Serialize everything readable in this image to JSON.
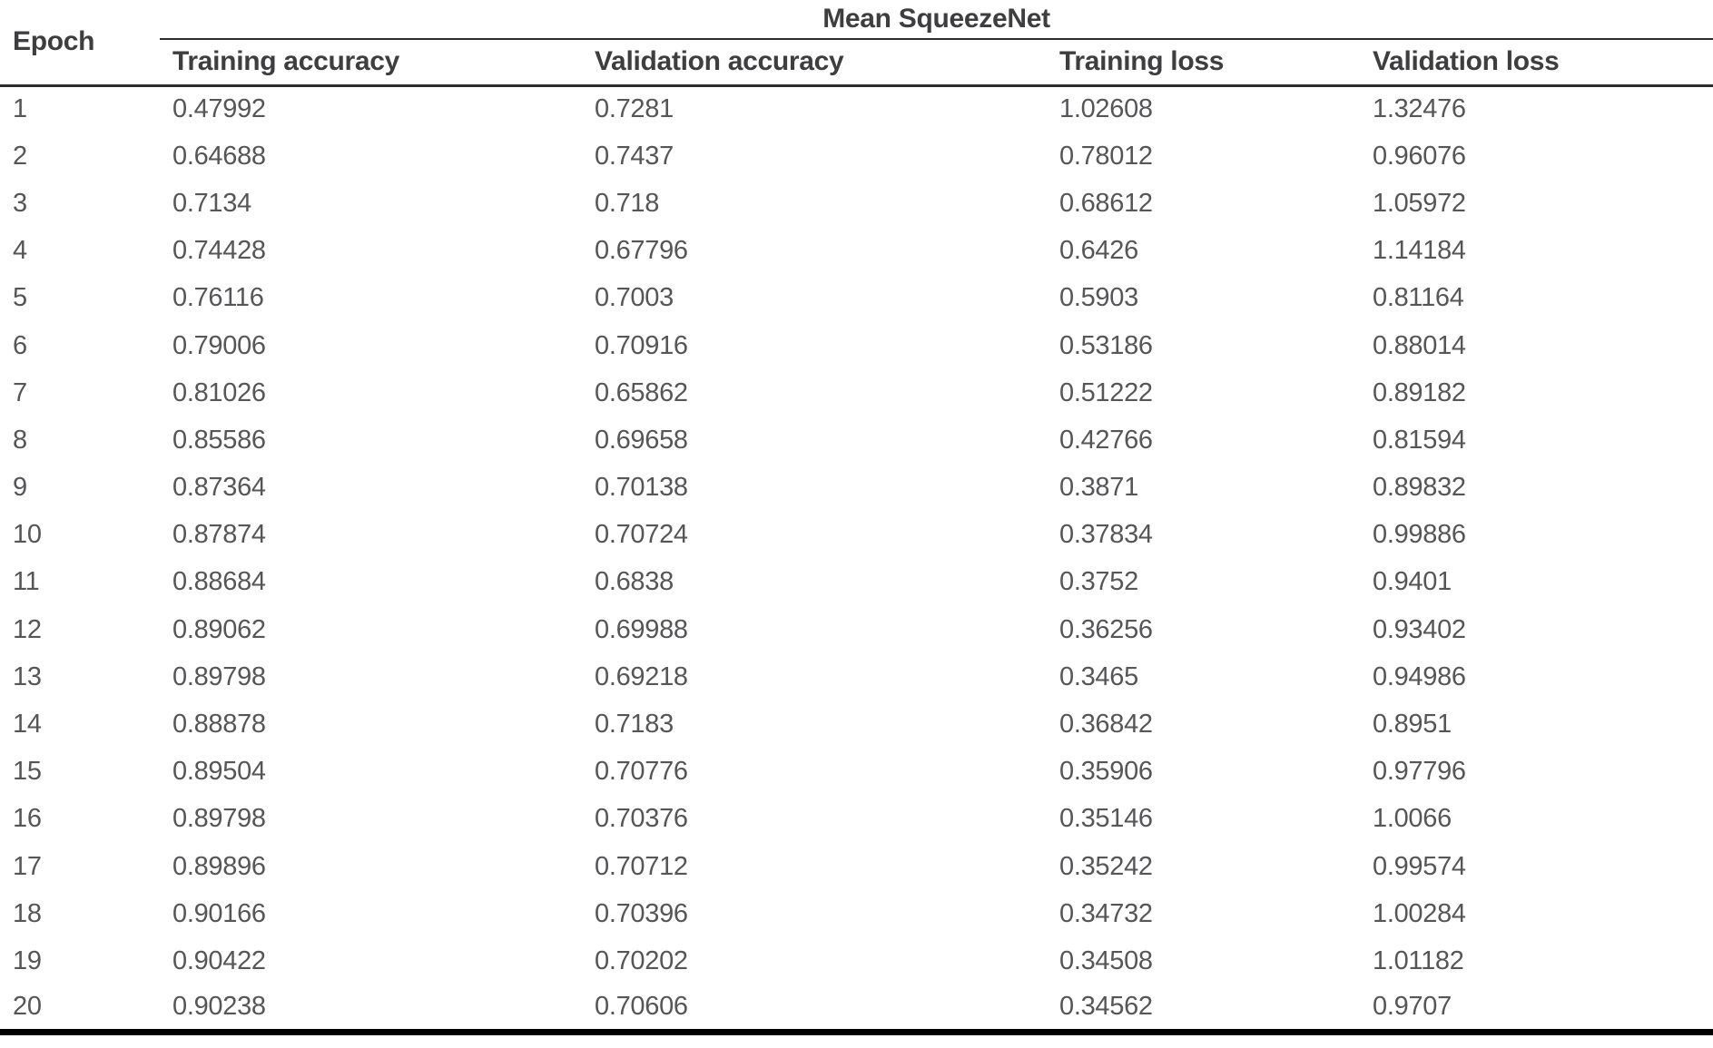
{
  "colors": {
    "header_text": "#3e3e40",
    "body_text": "#565659",
    "rule_color": "#2d2d2f",
    "bottom_rule": "#000000",
    "background": "#ffffff"
  },
  "table": {
    "epoch_header": "Epoch",
    "group_header": "Mean SqueezeNet",
    "columns": [
      "Training accuracy",
      "Validation accuracy",
      "Training loss",
      "Validation loss"
    ],
    "column_keys": [
      "training-accuracy",
      "validation-accuracy",
      "training-loss",
      "validation-loss"
    ],
    "rows": [
      [
        "1",
        "0.47992",
        "0.7281",
        "1.02608",
        "1.32476"
      ],
      [
        "2",
        "0.64688",
        "0.7437",
        "0.78012",
        "0.96076"
      ],
      [
        "3",
        "0.7134",
        "0.718",
        "0.68612",
        "1.05972"
      ],
      [
        "4",
        "0.74428",
        "0.67796",
        "0.6426",
        "1.14184"
      ],
      [
        "5",
        "0.76116",
        "0.7003",
        "0.5903",
        "0.81164"
      ],
      [
        "6",
        "0.79006",
        "0.70916",
        "0.53186",
        "0.88014"
      ],
      [
        "7",
        "0.81026",
        "0.65862",
        "0.51222",
        "0.89182"
      ],
      [
        "8",
        "0.85586",
        "0.69658",
        "0.42766",
        "0.81594"
      ],
      [
        "9",
        "0.87364",
        "0.70138",
        "0.3871",
        "0.89832"
      ],
      [
        "10",
        "0.87874",
        "0.70724",
        "0.37834",
        "0.99886"
      ],
      [
        "11",
        "0.88684",
        "0.6838",
        "0.3752",
        "0.9401"
      ],
      [
        "12",
        "0.89062",
        "0.69988",
        "0.36256",
        "0.93402"
      ],
      [
        "13",
        "0.89798",
        "0.69218",
        "0.3465",
        "0.94986"
      ],
      [
        "14",
        "0.88878",
        "0.7183",
        "0.36842",
        "0.8951"
      ],
      [
        "15",
        "0.89504",
        "0.70776",
        "0.35906",
        "0.97796"
      ],
      [
        "16",
        "0.89798",
        "0.70376",
        "0.35146",
        "1.0066"
      ],
      [
        "17",
        "0.89896",
        "0.70712",
        "0.35242",
        "0.99574"
      ],
      [
        "18",
        "0.90166",
        "0.70396",
        "0.34732",
        "1.00284"
      ],
      [
        "19",
        "0.90422",
        "0.70202",
        "0.34508",
        "1.01182"
      ],
      [
        "20",
        "0.90238",
        "0.70606",
        "0.34562",
        "0.9707"
      ]
    ]
  }
}
